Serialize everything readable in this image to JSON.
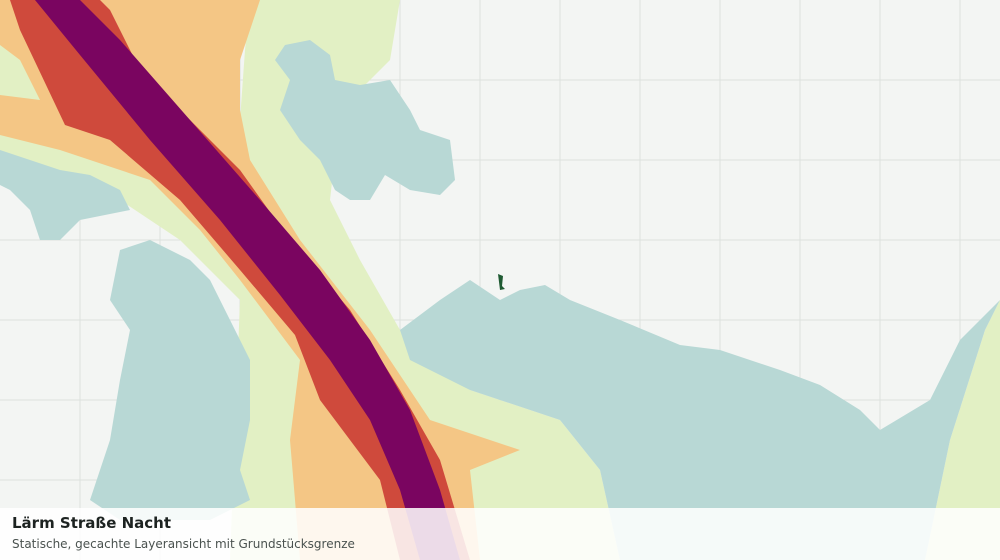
{
  "caption": {
    "title": "Lärm Straße Nacht",
    "subtitle": "Statische, gecachte Layeransicht mit Grundstücksgrenze"
  }
}
